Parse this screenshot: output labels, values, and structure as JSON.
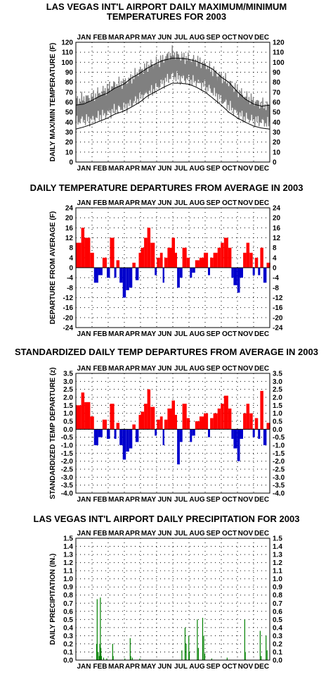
{
  "months": [
    "JAN",
    "FEB",
    "MAR",
    "APR",
    "MAY",
    "JUN",
    "JUL",
    "AUG",
    "SEP",
    "OCT",
    "NOV",
    "DEC"
  ],
  "chart_data": [
    {
      "id": "temps",
      "type": "line",
      "title_lines": [
        "LAS VEGAS INT'L AIRPORT DAILY MAXIMUM/MINIMUM",
        "TEMPERATURES FOR 2003"
      ],
      "ylabel": "DAILY MAX/MIN TEMPERATURE (F)",
      "ylim": [
        0,
        120
      ],
      "yticks": [
        "0",
        "10",
        "20",
        "30",
        "40",
        "50",
        "60",
        "70",
        "80",
        "90",
        "100",
        "110",
        "120"
      ],
      "grid": true,
      "series": [
        {
          "role": "observed-band",
          "color": "#808080",
          "x_day": [
            1,
            15,
            32,
            46,
            60,
            74,
            91,
            105,
            121,
            135,
            152,
            166,
            182,
            196,
            213,
            227,
            244,
            258,
            274,
            288,
            305,
            319,
            335,
            350,
            365
          ],
          "high": [
            62,
            64,
            66,
            70,
            74,
            78,
            80,
            84,
            92,
            96,
            100,
            104,
            110,
            106,
            104,
            102,
            98,
            92,
            86,
            80,
            72,
            66,
            62,
            58,
            56
          ],
          "low": [
            40,
            42,
            42,
            46,
            48,
            52,
            54,
            58,
            64,
            68,
            74,
            80,
            86,
            84,
            82,
            80,
            76,
            70,
            62,
            56,
            48,
            44,
            42,
            40,
            38
          ]
        },
        {
          "role": "normal-max",
          "color": "#000000",
          "x_day": [
            1,
            15,
            32,
            46,
            60,
            74,
            91,
            105,
            121,
            135,
            152,
            166,
            182,
            196,
            213,
            227,
            244,
            258,
            274,
            288,
            305,
            319,
            335,
            350,
            365
          ],
          "values": [
            57,
            58,
            62,
            66,
            69,
            74,
            78,
            84,
            89,
            94,
            99,
            102,
            104,
            104,
            103,
            101,
            97,
            93,
            85,
            80,
            70,
            63,
            58,
            56,
            57
          ]
        },
        {
          "role": "normal-min",
          "color": "#000000",
          "x_day": [
            1,
            15,
            32,
            46,
            60,
            74,
            91,
            105,
            121,
            135,
            152,
            166,
            182,
            196,
            213,
            227,
            244,
            258,
            274,
            288,
            305,
            319,
            335,
            350,
            365
          ],
          "values": [
            33,
            35,
            38,
            41,
            44,
            48,
            51,
            55,
            60,
            66,
            71,
            75,
            79,
            79,
            78,
            75,
            70,
            64,
            57,
            50,
            44,
            40,
            36,
            34,
            33
          ]
        }
      ]
    },
    {
      "id": "departures",
      "type": "bar",
      "title_lines": [
        "DAILY TEMPERATURE DEPARTURES FROM AVERAGE IN 2003"
      ],
      "ylabel": "DEPARTURE FROM AVERAGE (F)",
      "ylim": [
        -24,
        24
      ],
      "yticks": [
        "-24",
        "-20",
        "-16",
        "-12",
        "-8",
        "-4",
        "0",
        "4",
        "8",
        "12",
        "16",
        "20",
        "24"
      ],
      "grid": true,
      "pos_color": "#ff0000",
      "neg_color": "#0000cc",
      "segments": [
        {
          "start": 1,
          "end": 10,
          "value": 10
        },
        {
          "start": 11,
          "end": 16,
          "value": 16
        },
        {
          "start": 17,
          "end": 27,
          "value": 12
        },
        {
          "start": 28,
          "end": 34,
          "value": 6
        },
        {
          "start": 35,
          "end": 42,
          "value": -6
        },
        {
          "start": 43,
          "end": 50,
          "value": -3
        },
        {
          "start": 51,
          "end": 58,
          "value": 4
        },
        {
          "start": 59,
          "end": 64,
          "value": -4
        },
        {
          "start": 65,
          "end": 72,
          "value": 12
        },
        {
          "start": 73,
          "end": 76,
          "value": -4
        },
        {
          "start": 77,
          "end": 82,
          "value": 3
        },
        {
          "start": 83,
          "end": 88,
          "value": -6
        },
        {
          "start": 89,
          "end": 94,
          "value": -12
        },
        {
          "start": 95,
          "end": 100,
          "value": -9
        },
        {
          "start": 101,
          "end": 106,
          "value": -8
        },
        {
          "start": 107,
          "end": 112,
          "value": 2
        },
        {
          "start": 113,
          "end": 118,
          "value": -5
        },
        {
          "start": 119,
          "end": 122,
          "value": 6
        },
        {
          "start": 123,
          "end": 128,
          "value": 8
        },
        {
          "start": 129,
          "end": 134,
          "value": 12
        },
        {
          "start": 135,
          "end": 140,
          "value": 16
        },
        {
          "start": 141,
          "end": 148,
          "value": 10
        },
        {
          "start": 149,
          "end": 152,
          "value": -3
        },
        {
          "start": 153,
          "end": 158,
          "value": 4
        },
        {
          "start": 159,
          "end": 163,
          "value": 6
        },
        {
          "start": 164,
          "end": 166,
          "value": -6
        },
        {
          "start": 167,
          "end": 172,
          "value": 4
        },
        {
          "start": 173,
          "end": 180,
          "value": 8
        },
        {
          "start": 181,
          "end": 186,
          "value": 12
        },
        {
          "start": 187,
          "end": 190,
          "value": 6
        },
        {
          "start": 191,
          "end": 195,
          "value": -8
        },
        {
          "start": 196,
          "end": 200,
          "value": -4
        },
        {
          "start": 201,
          "end": 208,
          "value": 8
        },
        {
          "start": 209,
          "end": 214,
          "value": 4
        },
        {
          "start": 215,
          "end": 218,
          "value": -4
        },
        {
          "start": 219,
          "end": 224,
          "value": -2
        },
        {
          "start": 225,
          "end": 232,
          "value": 3
        },
        {
          "start": 233,
          "end": 240,
          "value": 4
        },
        {
          "start": 241,
          "end": 248,
          "value": 6
        },
        {
          "start": 249,
          "end": 252,
          "value": -3
        },
        {
          "start": 253,
          "end": 258,
          "value": 4
        },
        {
          "start": 259,
          "end": 266,
          "value": 6
        },
        {
          "start": 267,
          "end": 272,
          "value": 8
        },
        {
          "start": 273,
          "end": 278,
          "value": 10
        },
        {
          "start": 279,
          "end": 286,
          "value": 12
        },
        {
          "start": 287,
          "end": 292,
          "value": 8
        },
        {
          "start": 293,
          "end": 296,
          "value": -4
        },
        {
          "start": 297,
          "end": 303,
          "value": -7
        },
        {
          "start": 304,
          "end": 308,
          "value": -10
        },
        {
          "start": 309,
          "end": 314,
          "value": -4
        },
        {
          "start": 315,
          "end": 320,
          "value": 6
        },
        {
          "start": 321,
          "end": 326,
          "value": 10
        },
        {
          "start": 327,
          "end": 332,
          "value": 6
        },
        {
          "start": 333,
          "end": 336,
          "value": -3
        },
        {
          "start": 337,
          "end": 342,
          "value": 4
        },
        {
          "start": 343,
          "end": 346,
          "value": -3
        },
        {
          "start": 347,
          "end": 352,
          "value": 8
        },
        {
          "start": 353,
          "end": 358,
          "value": -6
        },
        {
          "start": 359,
          "end": 365,
          "value": 2
        }
      ]
    },
    {
      "id": "standardized",
      "type": "bar",
      "title_lines": [
        "STANDARDIZED DAILY TEMP DEPARTURES FROM AVERAGE IN 2003"
      ],
      "ylabel": "STANDARDIZED TEMP DEPARTURE (z)",
      "ylim": [
        -4.0,
        3.5
      ],
      "yticks": [
        "-4.0",
        "-3.5",
        "-3.0",
        "-2.5",
        "-2.0",
        "-1.5",
        "-1.0",
        "-0.5",
        "0.0",
        "0.5",
        "1.0",
        "1.5",
        "2.0",
        "2.5",
        "3.0",
        "3.5"
      ],
      "grid": true,
      "pos_color": "#ff0000",
      "neg_color": "#0000cc",
      "segments": [
        {
          "start": 1,
          "end": 10,
          "value": 1.5
        },
        {
          "start": 11,
          "end": 16,
          "value": 2.3
        },
        {
          "start": 17,
          "end": 27,
          "value": 1.7
        },
        {
          "start": 28,
          "end": 34,
          "value": 0.8
        },
        {
          "start": 35,
          "end": 42,
          "value": -1.0
        },
        {
          "start": 43,
          "end": 50,
          "value": -0.5
        },
        {
          "start": 51,
          "end": 58,
          "value": 0.6
        },
        {
          "start": 59,
          "end": 64,
          "value": -0.6
        },
        {
          "start": 65,
          "end": 72,
          "value": 1.6
        },
        {
          "start": 73,
          "end": 76,
          "value": -0.6
        },
        {
          "start": 77,
          "end": 82,
          "value": 0.4
        },
        {
          "start": 83,
          "end": 88,
          "value": -1.0
        },
        {
          "start": 89,
          "end": 94,
          "value": -1.9
        },
        {
          "start": 95,
          "end": 100,
          "value": -1.4
        },
        {
          "start": 101,
          "end": 106,
          "value": -1.2
        },
        {
          "start": 107,
          "end": 112,
          "value": 0.3
        },
        {
          "start": 113,
          "end": 118,
          "value": -0.8
        },
        {
          "start": 119,
          "end": 122,
          "value": 0.9
        },
        {
          "start": 123,
          "end": 128,
          "value": 1.1
        },
        {
          "start": 129,
          "end": 134,
          "value": 1.6
        },
        {
          "start": 135,
          "end": 140,
          "value": 2.5
        },
        {
          "start": 141,
          "end": 148,
          "value": 1.4
        },
        {
          "start": 149,
          "end": 152,
          "value": -0.4
        },
        {
          "start": 153,
          "end": 158,
          "value": 0.6
        },
        {
          "start": 159,
          "end": 163,
          "value": 0.8
        },
        {
          "start": 164,
          "end": 166,
          "value": -1.0
        },
        {
          "start": 167,
          "end": 172,
          "value": 0.6
        },
        {
          "start": 173,
          "end": 180,
          "value": 1.3
        },
        {
          "start": 181,
          "end": 186,
          "value": 1.8
        },
        {
          "start": 187,
          "end": 190,
          "value": 0.9
        },
        {
          "start": 191,
          "end": 195,
          "value": -2.2
        },
        {
          "start": 196,
          "end": 200,
          "value": -0.8
        },
        {
          "start": 201,
          "end": 208,
          "value": 1.6
        },
        {
          "start": 209,
          "end": 214,
          "value": 0.7
        },
        {
          "start": 215,
          "end": 218,
          "value": -0.8
        },
        {
          "start": 219,
          "end": 224,
          "value": -0.4
        },
        {
          "start": 225,
          "end": 232,
          "value": 0.5
        },
        {
          "start": 233,
          "end": 240,
          "value": 0.8
        },
        {
          "start": 241,
          "end": 248,
          "value": 1.0
        },
        {
          "start": 249,
          "end": 252,
          "value": -0.5
        },
        {
          "start": 253,
          "end": 258,
          "value": 0.7
        },
        {
          "start": 259,
          "end": 266,
          "value": 1.0
        },
        {
          "start": 267,
          "end": 272,
          "value": 1.3
        },
        {
          "start": 273,
          "end": 278,
          "value": 1.6
        },
        {
          "start": 279,
          "end": 286,
          "value": 2.1
        },
        {
          "start": 287,
          "end": 292,
          "value": 1.3
        },
        {
          "start": 293,
          "end": 296,
          "value": -0.6
        },
        {
          "start": 297,
          "end": 303,
          "value": -1.2
        },
        {
          "start": 304,
          "end": 308,
          "value": -2.0
        },
        {
          "start": 309,
          "end": 314,
          "value": -0.6
        },
        {
          "start": 315,
          "end": 320,
          "value": 1.0
        },
        {
          "start": 321,
          "end": 326,
          "value": 1.6
        },
        {
          "start": 327,
          "end": 332,
          "value": 1.0
        },
        {
          "start": 333,
          "end": 336,
          "value": -0.5
        },
        {
          "start": 337,
          "end": 342,
          "value": 0.7
        },
        {
          "start": 343,
          "end": 346,
          "value": -0.6
        },
        {
          "start": 347,
          "end": 352,
          "value": 2.4
        },
        {
          "start": 353,
          "end": 358,
          "value": -1.0
        },
        {
          "start": 359,
          "end": 365,
          "value": 0.4
        }
      ]
    },
    {
      "id": "precip",
      "type": "bar",
      "title_lines": [
        "LAS VEGAS INT'L AIRPORT DAILY PRECIPITATION FOR 2003"
      ],
      "ylabel": "DAILY PRECIPITATION (IN.)",
      "ylim": [
        0,
        1.5
      ],
      "yticks": [
        "0.0",
        "0.1",
        "0.2",
        "0.3",
        "0.4",
        "0.5",
        "0.6",
        "0.7",
        "0.8",
        "0.9",
        "1.0",
        "1.1",
        "1.2",
        "1.3",
        "1.4",
        "1.5"
      ],
      "grid": true,
      "color": "#008000",
      "days": [
        {
          "day": 40,
          "value": 0.2
        },
        {
          "day": 41,
          "value": 0.75
        },
        {
          "day": 43,
          "value": 0.1
        },
        {
          "day": 45,
          "value": 0.05
        },
        {
          "day": 46,
          "value": 0.2
        },
        {
          "day": 47,
          "value": 0.77
        },
        {
          "day": 48,
          "value": 0.15
        },
        {
          "day": 49,
          "value": 0.05
        },
        {
          "day": 53,
          "value": 0.03
        },
        {
          "day": 59,
          "value": 0.02
        },
        {
          "day": 70,
          "value": 0.2
        },
        {
          "day": 71,
          "value": 0.05
        },
        {
          "day": 93,
          "value": 0.02
        },
        {
          "day": 103,
          "value": 0.27
        },
        {
          "day": 104,
          "value": 0.05
        },
        {
          "day": 107,
          "value": 0.03
        },
        {
          "day": 121,
          "value": 0.02
        },
        {
          "day": 200,
          "value": 0.12
        },
        {
          "day": 206,
          "value": 0.4
        },
        {
          "day": 208,
          "value": 0.2
        },
        {
          "day": 213,
          "value": 0.3
        },
        {
          "day": 214,
          "value": 0.1
        },
        {
          "day": 229,
          "value": 0.5
        },
        {
          "day": 231,
          "value": 0.15
        },
        {
          "day": 239,
          "value": 0.52
        },
        {
          "day": 241,
          "value": 0.3
        },
        {
          "day": 243,
          "value": 0.08
        },
        {
          "day": 256,
          "value": 0.02
        },
        {
          "day": 285,
          "value": 0.03
        },
        {
          "day": 318,
          "value": 0.5
        },
        {
          "day": 319,
          "value": 0.1
        },
        {
          "day": 347,
          "value": 0.36
        },
        {
          "day": 349,
          "value": 0.05
        },
        {
          "day": 358,
          "value": 0.3
        },
        {
          "day": 360,
          "value": 0.12
        }
      ]
    }
  ]
}
